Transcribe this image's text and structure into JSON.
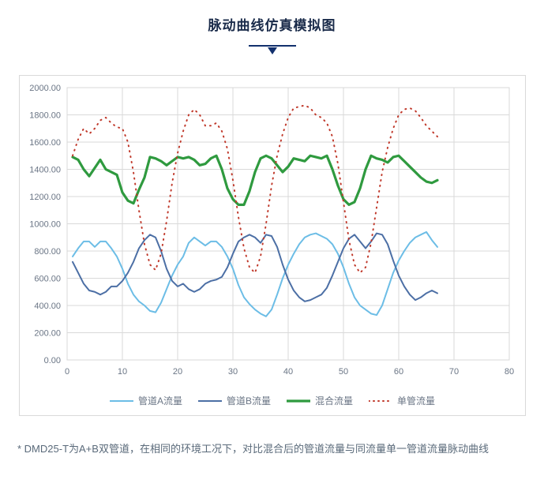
{
  "title": "脉动曲线仿真模拟图",
  "decor_color": "#12306d",
  "chart": {
    "type": "line",
    "background_color": "#ffffff",
    "border_color": "#d9d9d9",
    "grid_color": "#d9d9d9",
    "axis_label_color": "#6a7585",
    "axis_fontsize": 11,
    "xlim": [
      0,
      80
    ],
    "ylim": [
      0,
      2000
    ],
    "xtick_step": 10,
    "ytick_step": 200,
    "y_decimals": 2,
    "series": [
      {
        "name": "管道A流量",
        "color": "#6cbde6",
        "width": 2.0,
        "style": "solid",
        "data": [
          [
            1,
            760
          ],
          [
            2,
            820
          ],
          [
            3,
            870
          ],
          [
            4,
            870
          ],
          [
            5,
            830
          ],
          [
            6,
            870
          ],
          [
            7,
            870
          ],
          [
            8,
            820
          ],
          [
            9,
            760
          ],
          [
            10,
            670
          ],
          [
            11,
            560
          ],
          [
            12,
            480
          ],
          [
            13,
            430
          ],
          [
            14,
            400
          ],
          [
            15,
            360
          ],
          [
            16,
            350
          ],
          [
            17,
            420
          ],
          [
            18,
            520
          ],
          [
            19,
            620
          ],
          [
            20,
            700
          ],
          [
            21,
            760
          ],
          [
            22,
            860
          ],
          [
            23,
            900
          ],
          [
            24,
            870
          ],
          [
            25,
            840
          ],
          [
            26,
            870
          ],
          [
            27,
            870
          ],
          [
            28,
            830
          ],
          [
            29,
            760
          ],
          [
            30,
            670
          ],
          [
            31,
            550
          ],
          [
            32,
            460
          ],
          [
            33,
            410
          ],
          [
            34,
            370
          ],
          [
            35,
            340
          ],
          [
            36,
            320
          ],
          [
            37,
            370
          ],
          [
            38,
            480
          ],
          [
            39,
            600
          ],
          [
            40,
            700
          ],
          [
            41,
            780
          ],
          [
            42,
            850
          ],
          [
            43,
            900
          ],
          [
            44,
            920
          ],
          [
            45,
            930
          ],
          [
            46,
            910
          ],
          [
            47,
            890
          ],
          [
            48,
            850
          ],
          [
            49,
            780
          ],
          [
            50,
            680
          ],
          [
            51,
            560
          ],
          [
            52,
            460
          ],
          [
            53,
            400
          ],
          [
            54,
            370
          ],
          [
            55,
            340
          ],
          [
            56,
            330
          ],
          [
            57,
            400
          ],
          [
            58,
            520
          ],
          [
            59,
            640
          ],
          [
            60,
            730
          ],
          [
            61,
            800
          ],
          [
            62,
            860
          ],
          [
            63,
            900
          ],
          [
            64,
            920
          ],
          [
            65,
            940
          ],
          [
            66,
            880
          ],
          [
            67,
            830
          ]
        ]
      },
      {
        "name": "管道B流量",
        "color": "#4c6fa5",
        "width": 2.0,
        "style": "solid",
        "data": [
          [
            1,
            720
          ],
          [
            2,
            640
          ],
          [
            3,
            560
          ],
          [
            4,
            510
          ],
          [
            5,
            500
          ],
          [
            6,
            480
          ],
          [
            7,
            500
          ],
          [
            8,
            540
          ],
          [
            9,
            540
          ],
          [
            10,
            580
          ],
          [
            11,
            640
          ],
          [
            12,
            720
          ],
          [
            13,
            820
          ],
          [
            14,
            880
          ],
          [
            15,
            920
          ],
          [
            16,
            900
          ],
          [
            17,
            800
          ],
          [
            18,
            670
          ],
          [
            19,
            580
          ],
          [
            20,
            540
          ],
          [
            21,
            560
          ],
          [
            22,
            520
          ],
          [
            23,
            500
          ],
          [
            24,
            520
          ],
          [
            25,
            560
          ],
          [
            26,
            580
          ],
          [
            27,
            590
          ],
          [
            28,
            610
          ],
          [
            29,
            680
          ],
          [
            30,
            780
          ],
          [
            31,
            870
          ],
          [
            32,
            900
          ],
          [
            33,
            920
          ],
          [
            34,
            900
          ],
          [
            35,
            860
          ],
          [
            36,
            920
          ],
          [
            37,
            910
          ],
          [
            38,
            830
          ],
          [
            39,
            700
          ],
          [
            40,
            590
          ],
          [
            41,
            510
          ],
          [
            42,
            460
          ],
          [
            43,
            430
          ],
          [
            44,
            440
          ],
          [
            45,
            460
          ],
          [
            46,
            480
          ],
          [
            47,
            530
          ],
          [
            48,
            620
          ],
          [
            49,
            720
          ],
          [
            50,
            820
          ],
          [
            51,
            890
          ],
          [
            52,
            920
          ],
          [
            53,
            870
          ],
          [
            54,
            820
          ],
          [
            55,
            870
          ],
          [
            56,
            930
          ],
          [
            57,
            920
          ],
          [
            58,
            850
          ],
          [
            59,
            730
          ],
          [
            60,
            620
          ],
          [
            61,
            540
          ],
          [
            62,
            480
          ],
          [
            63,
            440
          ],
          [
            64,
            460
          ],
          [
            65,
            490
          ],
          [
            66,
            510
          ],
          [
            67,
            490
          ]
        ]
      },
      {
        "name": "混合流量",
        "color": "#2f9a3f",
        "width": 3.2,
        "style": "solid",
        "data": [
          [
            1,
            1490
          ],
          [
            2,
            1470
          ],
          [
            3,
            1400
          ],
          [
            4,
            1350
          ],
          [
            5,
            1410
          ],
          [
            6,
            1470
          ],
          [
            7,
            1400
          ],
          [
            8,
            1380
          ],
          [
            9,
            1360
          ],
          [
            10,
            1230
          ],
          [
            11,
            1170
          ],
          [
            12,
            1150
          ],
          [
            13,
            1250
          ],
          [
            14,
            1340
          ],
          [
            15,
            1490
          ],
          [
            16,
            1480
          ],
          [
            17,
            1460
          ],
          [
            18,
            1430
          ],
          [
            19,
            1460
          ],
          [
            20,
            1490
          ],
          [
            21,
            1480
          ],
          [
            22,
            1490
          ],
          [
            23,
            1470
          ],
          [
            24,
            1430
          ],
          [
            25,
            1440
          ],
          [
            26,
            1480
          ],
          [
            27,
            1500
          ],
          [
            28,
            1400
          ],
          [
            29,
            1260
          ],
          [
            30,
            1180
          ],
          [
            31,
            1140
          ],
          [
            32,
            1140
          ],
          [
            33,
            1240
          ],
          [
            34,
            1380
          ],
          [
            35,
            1480
          ],
          [
            36,
            1500
          ],
          [
            37,
            1480
          ],
          [
            38,
            1430
          ],
          [
            39,
            1380
          ],
          [
            40,
            1420
          ],
          [
            41,
            1480
          ],
          [
            42,
            1470
          ],
          [
            43,
            1460
          ],
          [
            44,
            1500
          ],
          [
            45,
            1490
          ],
          [
            46,
            1480
          ],
          [
            47,
            1500
          ],
          [
            48,
            1400
          ],
          [
            49,
            1280
          ],
          [
            50,
            1180
          ],
          [
            51,
            1140
          ],
          [
            52,
            1160
          ],
          [
            53,
            1260
          ],
          [
            54,
            1400
          ],
          [
            55,
            1500
          ],
          [
            56,
            1480
          ],
          [
            57,
            1470
          ],
          [
            58,
            1450
          ],
          [
            59,
            1490
          ],
          [
            60,
            1500
          ],
          [
            61,
            1460
          ],
          [
            62,
            1420
          ],
          [
            63,
            1380
          ],
          [
            64,
            1340
          ],
          [
            65,
            1310
          ],
          [
            66,
            1300
          ],
          [
            67,
            1320
          ]
        ]
      },
      {
        "name": "单管流量",
        "color": "#c0392b",
        "width": 2.0,
        "style": "dotted",
        "data": [
          [
            1,
            1500
          ],
          [
            2,
            1620
          ],
          [
            3,
            1700
          ],
          [
            4,
            1660
          ],
          [
            5,
            1700
          ],
          [
            6,
            1760
          ],
          [
            7,
            1780
          ],
          [
            8,
            1740
          ],
          [
            9,
            1710
          ],
          [
            10,
            1700
          ],
          [
            11,
            1600
          ],
          [
            12,
            1380
          ],
          [
            13,
            1100
          ],
          [
            14,
            850
          ],
          [
            15,
            700
          ],
          [
            16,
            660
          ],
          [
            17,
            780
          ],
          [
            18,
            1020
          ],
          [
            19,
            1300
          ],
          [
            20,
            1520
          ],
          [
            21,
            1680
          ],
          [
            22,
            1800
          ],
          [
            23,
            1840
          ],
          [
            24,
            1800
          ],
          [
            25,
            1720
          ],
          [
            26,
            1720
          ],
          [
            27,
            1740
          ],
          [
            28,
            1680
          ],
          [
            29,
            1550
          ],
          [
            30,
            1320
          ],
          [
            31,
            1050
          ],
          [
            32,
            820
          ],
          [
            33,
            680
          ],
          [
            34,
            640
          ],
          [
            35,
            760
          ],
          [
            36,
            1000
          ],
          [
            37,
            1280
          ],
          [
            38,
            1500
          ],
          [
            39,
            1660
          ],
          [
            40,
            1780
          ],
          [
            41,
            1850
          ],
          [
            42,
            1860
          ],
          [
            43,
            1870
          ],
          [
            44,
            1850
          ],
          [
            45,
            1800
          ],
          [
            46,
            1780
          ],
          [
            47,
            1740
          ],
          [
            48,
            1640
          ],
          [
            49,
            1440
          ],
          [
            50,
            1160
          ],
          [
            51,
            880
          ],
          [
            52,
            700
          ],
          [
            53,
            640
          ],
          [
            54,
            680
          ],
          [
            55,
            860
          ],
          [
            56,
            1120
          ],
          [
            57,
            1380
          ],
          [
            58,
            1560
          ],
          [
            59,
            1700
          ],
          [
            60,
            1800
          ],
          [
            61,
            1840
          ],
          [
            62,
            1850
          ],
          [
            63,
            1830
          ],
          [
            64,
            1780
          ],
          [
            65,
            1720
          ],
          [
            66,
            1680
          ],
          [
            67,
            1640
          ]
        ]
      }
    ]
  },
  "legend": {
    "position": "bottom",
    "fontsize": 12,
    "label_color": "#6a7585"
  },
  "footnote": "* DMD25-T为A+B双管道，在相同的环境工况下，对比混合后的管道流量与同流量单一管道流量脉动曲线",
  "footnote_color": "#5a6a7a",
  "footnote_fontsize": 13
}
